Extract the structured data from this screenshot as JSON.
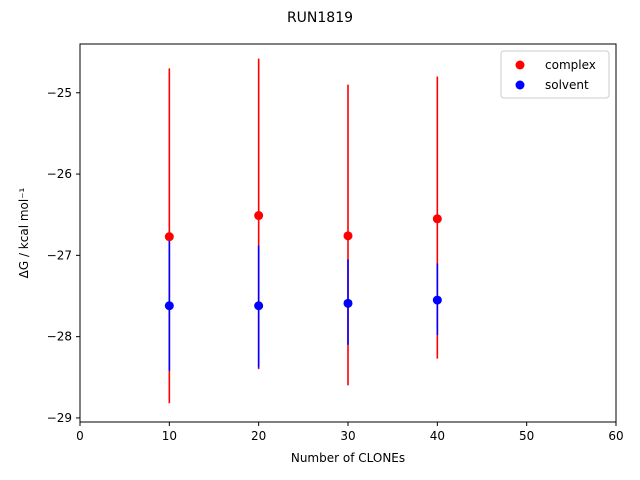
{
  "chart_data": {
    "type": "scatter",
    "title": "RUN1819",
    "xlabel": "Number of CLONEs",
    "ylabel": "ΔG / kcal mol⁻¹",
    "xlim": [
      0,
      60
    ],
    "ylim": [
      -29.05,
      -24.4
    ],
    "xticks": [
      0,
      10,
      20,
      30,
      40,
      50,
      60
    ],
    "yticks": [
      -29,
      -28,
      -27,
      -26,
      -25
    ],
    "xtick_labels": [
      "0",
      "10",
      "20",
      "30",
      "40",
      "50",
      "60"
    ],
    "ytick_labels": [
      "−29",
      "−28",
      "−27",
      "−26",
      "−25"
    ],
    "grid": false,
    "legend_position": "top-right",
    "series": [
      {
        "name": "complex",
        "color": "#ff0000",
        "x": [
          10,
          20,
          30,
          40
        ],
        "y": [
          -26.77,
          -26.51,
          -26.76,
          -26.55
        ],
        "err_low": [
          -28.82,
          -28.4,
          -28.6,
          -28.27
        ],
        "err_high": [
          -24.7,
          -24.58,
          -24.9,
          -24.8
        ]
      },
      {
        "name": "solvent",
        "color": "#0000ff",
        "x": [
          10,
          20,
          30,
          40
        ],
        "y": [
          -27.62,
          -27.62,
          -27.59,
          -27.55
        ],
        "err_low": [
          -28.42,
          -28.38,
          -28.1,
          -27.98
        ],
        "err_high": [
          -26.82,
          -26.88,
          -27.05,
          -27.1
        ]
      }
    ]
  }
}
